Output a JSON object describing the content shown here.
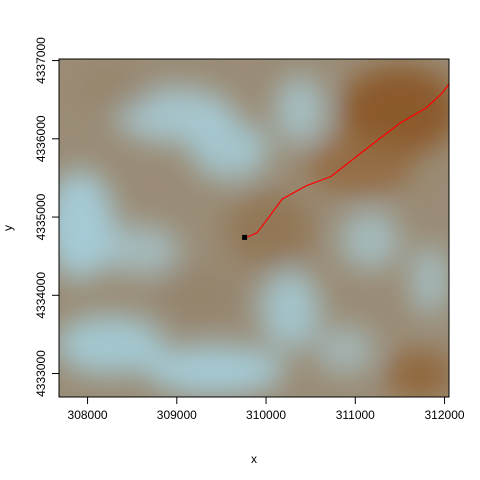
{
  "plot": {
    "xlabel": "x",
    "ylabel": "y",
    "xlim": [
      307680,
      312050
    ],
    "ylim": [
      4332700,
      4337020
    ],
    "x_ticks": [
      {
        "value": 308000,
        "label": "308000"
      },
      {
        "value": 309000,
        "label": "309000"
      },
      {
        "value": 310000,
        "label": "310000"
      },
      {
        "value": 311000,
        "label": "311000"
      },
      {
        "value": 312000,
        "label": "312000"
      }
    ],
    "y_ticks": [
      {
        "value": 4333000,
        "label": "4333000"
      },
      {
        "value": 4334000,
        "label": "4334000"
      },
      {
        "value": 4335000,
        "label": "4335000"
      },
      {
        "value": 4336000,
        "label": "4336000"
      },
      {
        "value": 4337000,
        "label": "4337000"
      }
    ]
  },
  "colors": {
    "low_elevation": "#a5d2e0",
    "mid_elevation": "#9a8c76",
    "high_elevation": "#8a5628",
    "path_line": "#ff0000",
    "start_point": "#000000",
    "frame": "#000000"
  },
  "map_layers": {
    "raster": "terrain elevation surface, light blue (low) to brown (high)",
    "path": {
      "description": "red path line",
      "points": [
        [
          309780,
          4334740
        ],
        [
          309900,
          4334800
        ],
        [
          310020,
          4334980
        ],
        [
          310180,
          4335230
        ],
        [
          310450,
          4335400
        ],
        [
          310730,
          4335520
        ],
        [
          311100,
          4335850
        ],
        [
          311500,
          4336200
        ],
        [
          311800,
          4336400
        ],
        [
          311970,
          4336580
        ],
        [
          312050,
          4336700
        ]
      ]
    },
    "start_point": {
      "x": 309760,
      "y": 4334740
    }
  }
}
